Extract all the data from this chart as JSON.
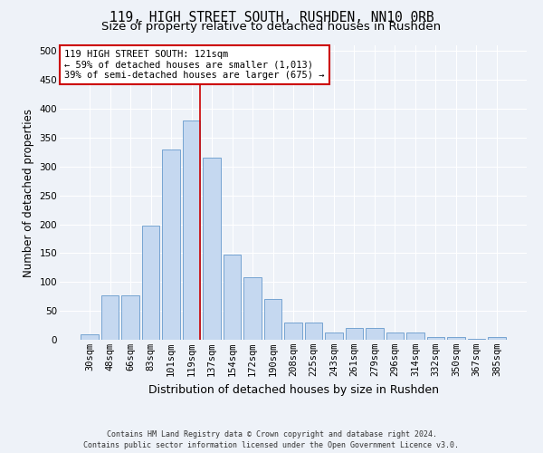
{
  "title": "119, HIGH STREET SOUTH, RUSHDEN, NN10 0RB",
  "subtitle": "Size of property relative to detached houses in Rushden",
  "xlabel": "Distribution of detached houses by size in Rushden",
  "ylabel": "Number of detached properties",
  "bar_color": "#c5d8f0",
  "bar_edge_color": "#6699cc",
  "categories": [
    "30sqm",
    "48sqm",
    "66sqm",
    "83sqm",
    "101sqm",
    "119sqm",
    "137sqm",
    "154sqm",
    "172sqm",
    "190sqm",
    "208sqm",
    "225sqm",
    "243sqm",
    "261sqm",
    "279sqm",
    "296sqm",
    "314sqm",
    "332sqm",
    "350sqm",
    "367sqm",
    "385sqm"
  ],
  "values": [
    9,
    77,
    77,
    197,
    330,
    380,
    315,
    148,
    108,
    70,
    30,
    30,
    13,
    20,
    20,
    13,
    13,
    5,
    5,
    1,
    4
  ],
  "vline_x_index": 5,
  "vline_color": "#cc0000",
  "annotation_text": "119 HIGH STREET SOUTH: 121sqm\n← 59% of detached houses are smaller (1,013)\n39% of semi-detached houses are larger (675) →",
  "annotation_box_color": "#ffffff",
  "annotation_box_edge": "#cc0000",
  "ylim": [
    0,
    510
  ],
  "yticks": [
    0,
    50,
    100,
    150,
    200,
    250,
    300,
    350,
    400,
    450,
    500
  ],
  "footer_line1": "Contains HM Land Registry data © Crown copyright and database right 2024.",
  "footer_line2": "Contains public sector information licensed under the Open Government Licence v3.0.",
  "bg_color": "#eef2f8",
  "axes_bg_color": "#eef2f8",
  "grid_color": "#ffffff",
  "title_fontsize": 10.5,
  "subtitle_fontsize": 9.5,
  "xlabel_fontsize": 9,
  "ylabel_fontsize": 8.5,
  "tick_fontsize": 7.5,
  "annotation_fontsize": 7.5,
  "footer_fontsize": 6
}
